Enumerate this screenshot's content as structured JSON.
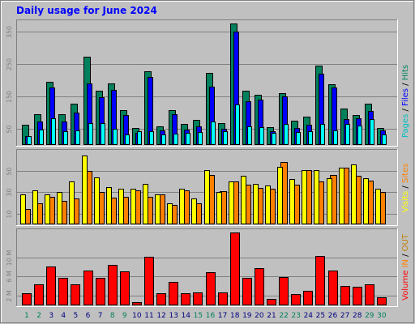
{
  "title": "Daily usage for June 2024",
  "colors": {
    "background": "#ffffff",
    "frame": "#e8e8e8",
    "panel": "#c0c0c0",
    "title": "#0000ff",
    "hits": "#00805c",
    "files": "#0000ff",
    "pages": "#00ffff",
    "visits": "#ffff00",
    "sites": "#ff8000",
    "kbin": "#ff8000",
    "kbout": "#c08000",
    "volume": "#ff0000",
    "weekend_day": "#00805c",
    "weekday": "#000080",
    "tick": "#808080"
  },
  "labels": {
    "top": [
      {
        "text": "Pages",
        "color": "#00c0c0"
      },
      {
        "text": " / ",
        "color": "#000000"
      },
      {
        "text": "Files",
        "color": "#0000ff"
      },
      {
        "text": " / ",
        "color": "#000000"
      },
      {
        "text": "Hits",
        "color": "#00805c"
      }
    ],
    "middle": [
      {
        "text": "Visits",
        "color": "#ffff00"
      },
      {
        "text": " / ",
        "color": "#000000"
      },
      {
        "text": "Sites",
        "color": "#ff8000"
      }
    ],
    "bottom": [
      {
        "text": "Volume",
        "color": "#ff0000"
      },
      {
        "text": "  ",
        "color": "#000000"
      },
      {
        "text": "IN",
        "color": "#ff8000"
      },
      {
        "text": " / ",
        "color": "#000000"
      },
      {
        "text": "OUT",
        "color": "#c08000"
      }
    ]
  },
  "chart_data": {
    "type": "bar",
    "days": [
      1,
      2,
      3,
      4,
      5,
      6,
      7,
      8,
      9,
      10,
      11,
      12,
      13,
      14,
      15,
      16,
      17,
      18,
      19,
      20,
      21,
      22,
      23,
      24,
      25,
      26,
      27,
      28,
      29,
      30
    ],
    "weekend_days": [
      1,
      2,
      8,
      9,
      15,
      16,
      22,
      23,
      29,
      30
    ],
    "panels": [
      {
        "name": "hits-files-pages",
        "ylim": [
          0,
          380
        ],
        "ticks": [
          {
            "value": 50,
            "label": "50"
          },
          {
            "value": 150,
            "label": "150"
          },
          {
            "value": 250,
            "label": "250"
          },
          {
            "value": 350,
            "label": "350"
          }
        ],
        "series": [
          {
            "name": "Hits",
            "values": [
              62,
              95,
              195,
              95,
              128,
              273,
              167,
              190,
              108,
              52,
              228,
              58,
              108,
              64,
              77,
              222,
              67,
              375,
              168,
              155,
              55,
              160,
              76,
              87,
              245,
              187,
              112,
              92,
              127,
              52
            ]
          },
          {
            "name": "Files",
            "values": [
              27,
              72,
              178,
              72,
              100,
              190,
              148,
              170,
              93,
              38,
              210,
              44,
              94,
              48,
              57,
              180,
              51,
              350,
              135,
              140,
              42,
              150,
              52,
              62,
              220,
              177,
              80,
              82,
              105,
              45
            ]
          },
          {
            "name": "Pages",
            "values": [
              28,
              48,
              82,
              42,
              46,
              68,
              68,
              50,
              32,
              42,
              43,
              32,
              36,
              37,
              40,
              72,
              43,
              125,
              58,
              55,
              38,
              66,
              40,
              43,
              66,
              45,
              66,
              60,
              80,
              32
            ]
          }
        ]
      },
      {
        "name": "visits-sites",
        "ylim": [
          0,
          68
        ],
        "ticks": [
          {
            "value": 10,
            "label": "10"
          },
          {
            "value": 30,
            "label": "30"
          },
          {
            "value": 50,
            "label": "50"
          }
        ],
        "series": [
          {
            "name": "Visits",
            "values": [
              14,
              20,
              26,
              22,
              24,
              50,
              30,
              25,
              26,
              32,
              26,
              28,
              18,
              32,
              20,
              46,
              31,
              40,
              37,
              34,
              33,
              58,
              37,
              51,
              40,
              46,
              53,
              45,
              41,
              30
            ]
          },
          {
            "name": "Sites",
            "values": [
              28,
              32,
              28,
              30,
              40,
              64,
              44,
              35,
              33,
              33,
              38,
              28,
              20,
              33,
              24,
              51,
              30,
              40,
              45,
              38,
              36,
              54,
              42,
              51,
              51,
              43,
              53,
              56,
              43,
              33
            ]
          }
        ]
      },
      {
        "name": "volume",
        "ylim": [
          0,
          15500000
        ],
        "ticks": [
          {
            "value": 2000000,
            "label": "2 M"
          },
          {
            "value": 6000000,
            "label": "6 M"
          },
          {
            "value": 10000000,
            "label": "10 M"
          }
        ],
        "series": [
          {
            "name": "Volume",
            "values": [
              2600000,
              4400000,
              8100000,
              5700000,
              4300000,
              7300000,
              5700000,
              8500000,
              7000000,
              700000,
              10100000,
              2600000,
              4900000,
              2500000,
              2700000,
              6900000,
              2700000,
              15200000,
              5700000,
              7700000,
              1400000,
              5900000,
              2300000,
              3000000,
              10300000,
              7300000,
              4000000,
              3800000,
              4300000,
              1700000
            ]
          }
        ]
      }
    ]
  }
}
